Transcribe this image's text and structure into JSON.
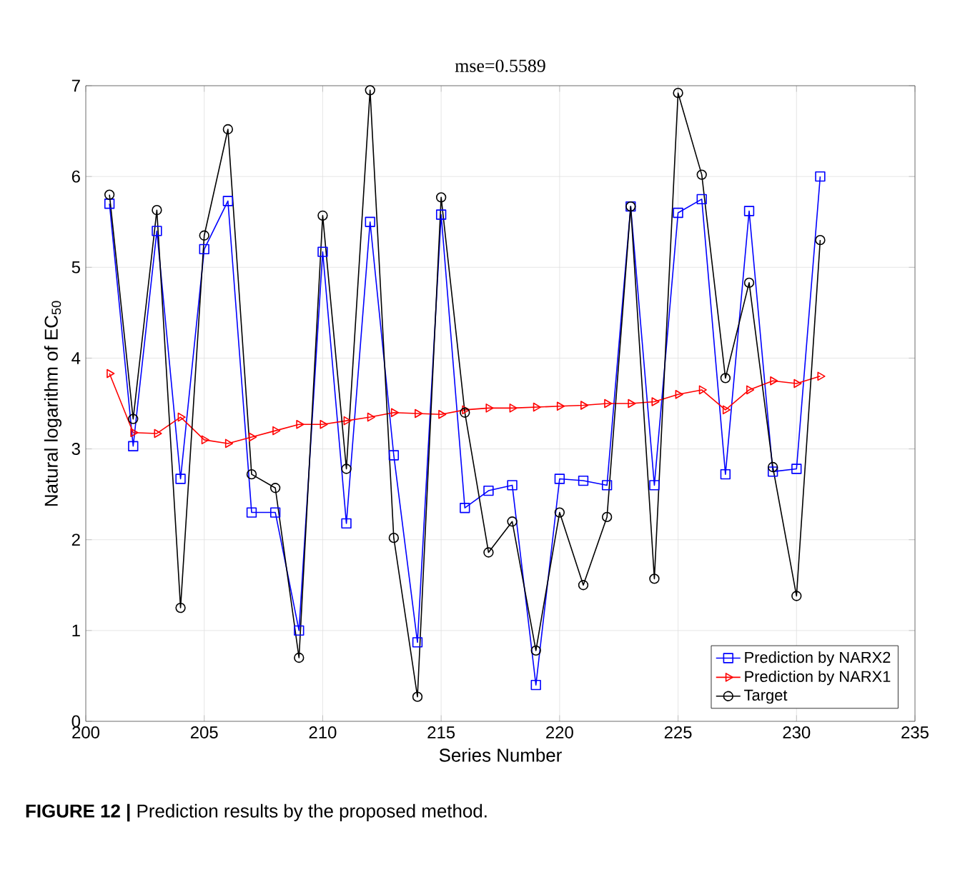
{
  "chart_data": {
    "type": "line",
    "title": "mse=0.5589",
    "xlabel": "Series Number",
    "ylabel": "Natural logarithm of EC$_{50}$",
    "x": [
      201,
      202,
      203,
      204,
      205,
      206,
      207,
      208,
      209,
      210,
      211,
      212,
      213,
      214,
      215,
      216,
      217,
      218,
      219,
      220,
      221,
      222,
      223,
      224,
      225,
      226,
      227,
      228,
      229,
      230,
      231
    ],
    "series": [
      {
        "name": "Prediction by NARX2",
        "color": "#0000ff",
        "marker": "square",
        "values": [
          5.7,
          3.03,
          5.4,
          2.67,
          5.2,
          5.73,
          2.3,
          2.3,
          1.0,
          5.17,
          2.18,
          5.5,
          2.93,
          0.87,
          5.58,
          2.35,
          2.54,
          2.6,
          0.4,
          2.67,
          2.65,
          2.6,
          5.67,
          2.6,
          5.6,
          5.75,
          2.72,
          5.62,
          2.75,
          2.78,
          6.0
        ]
      },
      {
        "name": "Prediction by NARX1",
        "color": "#ff0000",
        "marker": "triangle",
        "values": [
          3.83,
          3.18,
          3.17,
          3.35,
          3.1,
          3.06,
          3.13,
          3.2,
          3.27,
          3.27,
          3.31,
          3.35,
          3.4,
          3.39,
          3.38,
          3.43,
          3.45,
          3.45,
          3.46,
          3.47,
          3.48,
          3.5,
          3.5,
          3.52,
          3.6,
          3.65,
          3.43,
          3.65,
          3.75,
          3.72,
          3.8
        ]
      },
      {
        "name": "Target",
        "color": "#000000",
        "marker": "circle",
        "values": [
          5.8,
          3.33,
          5.63,
          1.25,
          5.35,
          6.52,
          2.72,
          2.57,
          0.7,
          5.57,
          2.78,
          6.95,
          2.02,
          0.27,
          5.77,
          3.4,
          1.86,
          2.2,
          0.78,
          2.3,
          1.5,
          2.25,
          5.67,
          1.57,
          6.92,
          6.02,
          3.78,
          4.83,
          2.8,
          1.38,
          5.3
        ]
      }
    ],
    "xlim": [
      200,
      235
    ],
    "xticks": [
      200,
      205,
      210,
      215,
      220,
      225,
      230,
      235
    ],
    "ylim": [
      0,
      7
    ],
    "yticks": [
      0,
      1,
      2,
      3,
      4,
      5,
      6,
      7
    ],
    "grid": true,
    "legend": "bottom right",
    "line_style": "solid",
    "annotations": [
      "**FIGURE 12 |** Prediction results by the proposed method."
    ]
  }
}
